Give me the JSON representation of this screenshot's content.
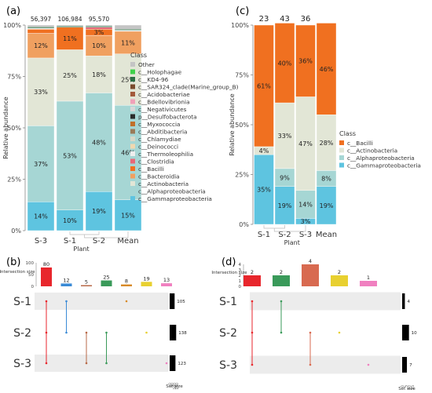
{
  "panels": {
    "a": "(a)",
    "b": "(b)",
    "c": "(c)",
    "d": "(d)"
  },
  "colors": {
    "Other": "#c4c4c4",
    "c__Holophagae": "#3fd14a",
    "c__KD4-96": "#2c6e44",
    "c__SAR324_clade(Marine_group_B)": "#7a4a2c",
    "c__Acidobacteriae": "#a35a3a",
    "c__Bdellovibrionia": "#f0a0b8",
    "c__Negativicutes": "#d8d8d8",
    "p__Desulfobacterota": "#2a2a2a",
    "c__Myxococcia": "#c0702a",
    "c__Abditibacteria": "#9a7a58",
    "c__Chlamydiae": "#d8d8c8",
    "c__Deinococci": "#f0d8b0",
    "c__Thermoleophilia": "#eeeeee",
    "c__Clostridia": "#e86878",
    "c__Bacilli": "#f07020",
    "c__Bacteroidia": "#f0a060",
    "c__Actinobacteria": "#e2e6d6",
    "c__Alphaproteobacteria": "#a6d6d4",
    "c__Gammaproteobacteria": "#5ec4e0",
    "upset_red": "#e8262c",
    "upset_blue": "#3a8ad6",
    "upset_brown": "#b86a48",
    "upset_green": "#3a9a5a",
    "upset_orange": "#d88a28",
    "upset_yellow": "#e8d030",
    "upset_pink": "#f080c0",
    "upset_coral": "#d86a50"
  },
  "chart_data": [
    {
      "panel": "a",
      "type": "bar",
      "stacked": true,
      "categories": [
        "S-3",
        "S-1",
        "S-2",
        "Mean"
      ],
      "top_labels": [
        "56,397",
        "106,984",
        "95,570",
        ""
      ],
      "xlabel": "Plant",
      "ylabel": "Relative abundance",
      "ylim": [
        0,
        100
      ],
      "yticks": [
        "0%",
        "25%",
        "50%",
        "75%",
        "100%"
      ],
      "legend_title": "Class",
      "legend": [
        "Other",
        "c__Holophagae",
        "c__KD4-96",
        "c__SAR324_clade(Marine_group_B)",
        "c__Acidobacteriae",
        "c__Bdellovibrionia",
        "c__Negativicutes",
        "p__Desulfobacterota",
        "c__Myxococcia",
        "c__Abditibacteria",
        "c__Chlamydiae",
        "c__Deinococci",
        "c__Thermoleophilia",
        "c__Clostridia",
        "c__Bacilli",
        "c__Bacteroidia",
        "c__Actinobacteria",
        "c__Alphaproteobacteria",
        "c__Gammaproteobacteria"
      ],
      "series": [
        {
          "name": "c__Gammaproteobacteria",
          "values": [
            14,
            10,
            19,
            15
          ],
          "labels": [
            "14%",
            "10%",
            "19%",
            "15%"
          ]
        },
        {
          "name": "c__Alphaproteobacteria",
          "values": [
            37,
            53,
            48,
            46
          ],
          "labels": [
            "37%",
            "53%",
            "48%",
            "46%"
          ]
        },
        {
          "name": "c__Actinobacteria",
          "values": [
            33,
            25,
            18,
            25
          ],
          "labels": [
            "33%",
            "25%",
            "18%",
            "25%"
          ]
        },
        {
          "name": "c__Bacteroidia",
          "values": [
            12,
            0,
            10,
            11
          ],
          "labels": [
            "12%",
            "",
            "10%",
            "11%"
          ]
        },
        {
          "name": "c__Bacilli",
          "values": [
            2,
            11,
            3,
            0
          ],
          "labels": [
            "",
            "11%",
            "3%",
            ""
          ]
        },
        {
          "name": "c__Clostridia",
          "values": [
            0,
            0,
            1,
            0
          ],
          "labels": [
            "",
            "",
            "",
            ""
          ]
        },
        {
          "name": "c__Thermoleophilia",
          "values": [
            0.5,
            0,
            0,
            0.5
          ],
          "labels": [
            "",
            "",
            "",
            ""
          ]
        },
        {
          "name": "c__KD4-96",
          "values": [
            0.6,
            0.5,
            0.5,
            0.5
          ],
          "labels": [
            "",
            "",
            "",
            ""
          ]
        },
        {
          "name": "Other",
          "values": [
            0.9,
            0.5,
            0.5,
            2
          ],
          "labels": [
            "",
            "",
            "",
            ""
          ]
        }
      ]
    },
    {
      "panel": "c",
      "type": "bar",
      "stacked": true,
      "categories": [
        "S-1",
        "S-2",
        "S-3",
        "Mean"
      ],
      "top_labels": [
        "23",
        "43",
        "36",
        ""
      ],
      "xlabel": "Plant",
      "ylabel": "Relative abundance",
      "ylim": [
        0,
        100
      ],
      "yticks": [
        "0%",
        "25%",
        "50%",
        "75%",
        "100%"
      ],
      "legend_title": "Class",
      "legend": [
        "c__Bacilli",
        "c__Actinobacteria",
        "c__Alphaproteobacteria",
        "c__Gammaproteobacteria"
      ],
      "series": [
        {
          "name": "c__Gammaproteobacteria",
          "values": [
            35,
            19,
            3,
            19
          ],
          "labels": [
            "35%",
            "19%",
            "3%",
            "19%"
          ]
        },
        {
          "name": "c__Alphaproteobacteria",
          "values": [
            0,
            9,
            14,
            8
          ],
          "labels": [
            "",
            "9%",
            "14%",
            "8%"
          ]
        },
        {
          "name": "c__Actinobacteria",
          "values": [
            4,
            33,
            47,
            28
          ],
          "labels": [
            "4%",
            "33%",
            "47%",
            "28%"
          ]
        },
        {
          "name": "c__Bacilli",
          "values": [
            61,
            40,
            36,
            46
          ],
          "labels": [
            "61%",
            "40%",
            "36%",
            "46%"
          ]
        }
      ]
    },
    {
      "panel": "b",
      "type": "upset",
      "sets": [
        "S-1",
        "S-2",
        "S-3"
      ],
      "set_sizes": [
        105,
        138,
        123
      ],
      "set_size_label": "Set size",
      "set_size_ticks": [
        "0",
        "50",
        "100",
        "150"
      ],
      "intersection_label": "Intersection size",
      "intersection_ticks": [
        "0",
        "50",
        "100"
      ],
      "intersection_max": 100,
      "intersections": [
        {
          "size": 80,
          "sets": [
            0,
            1,
            2
          ],
          "color": "upset_red"
        },
        {
          "size": 12,
          "sets": [
            0,
            1
          ],
          "color": "upset_blue"
        },
        {
          "size": 5,
          "sets": [
            1,
            2
          ],
          "color": "upset_brown"
        },
        {
          "size": 25,
          "sets": [
            1,
            2
          ],
          "color": "upset_green"
        },
        {
          "size": 8,
          "sets": [
            0
          ],
          "color": "upset_orange"
        },
        {
          "size": 19,
          "sets": [
            1
          ],
          "color": "upset_yellow"
        },
        {
          "size": 13,
          "sets": [
            2
          ],
          "color": "upset_pink"
        }
      ]
    },
    {
      "panel": "d",
      "type": "upset",
      "sets": [
        "S-1",
        "S-2",
        "S-3"
      ],
      "set_sizes": [
        4,
        10,
        7
      ],
      "set_size_label": "Set size",
      "set_size_ticks": [
        "0",
        "5",
        "10",
        "15"
      ],
      "intersection_label": "Intersection size",
      "intersection_ticks": [
        "0",
        "1",
        "2",
        "3",
        "4"
      ],
      "intersection_max": 4,
      "intersections": [
        {
          "size": 2,
          "sets": [
            0,
            1,
            2
          ],
          "color": "upset_red"
        },
        {
          "size": 2,
          "sets": [
            0,
            1
          ],
          "color": "upset_green"
        },
        {
          "size": 4,
          "sets": [
            1,
            2
          ],
          "color": "upset_coral"
        },
        {
          "size": 2,
          "sets": [
            1
          ],
          "color": "upset_yellow"
        },
        {
          "size": 1,
          "sets": [
            2
          ],
          "color": "upset_pink"
        }
      ]
    }
  ]
}
